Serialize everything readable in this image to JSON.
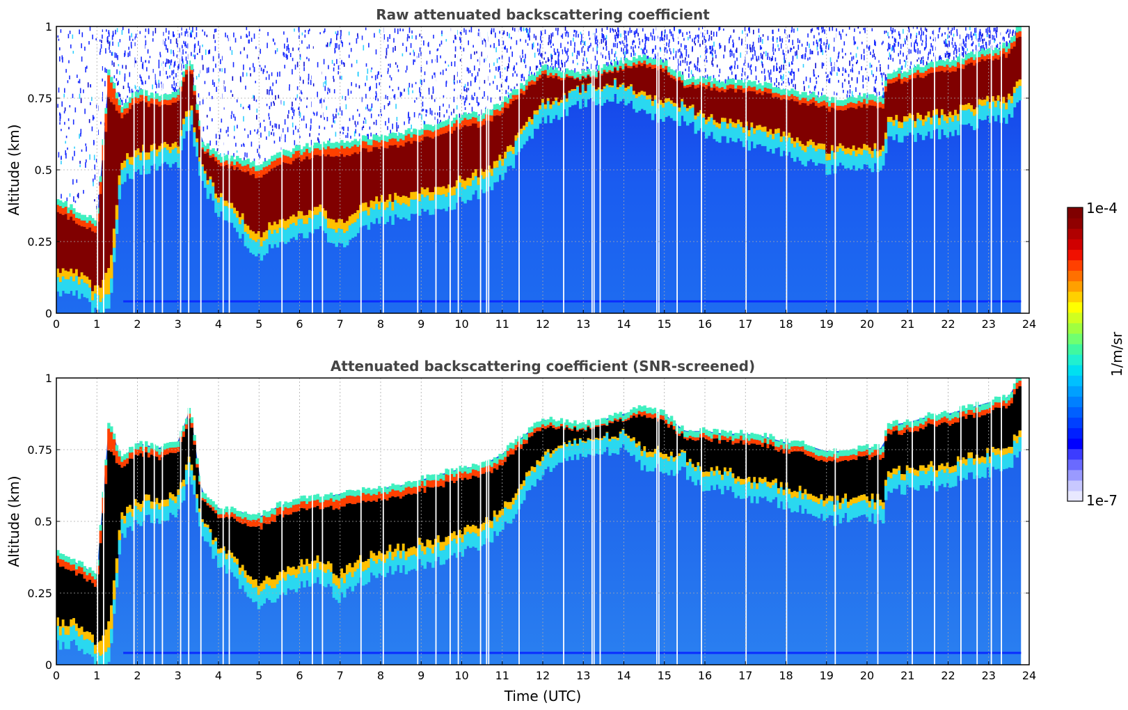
{
  "chart_data": [
    {
      "type": "heatmap",
      "title": "Raw attenuated backscattering coefficient",
      "xlabel": "",
      "ylabel": "Altitude (km)",
      "xlim": [
        0,
        24
      ],
      "ylim": [
        0,
        1
      ],
      "xticks": [
        "0",
        "1",
        "2",
        "3",
        "4",
        "5",
        "6",
        "7",
        "8",
        "9",
        "10",
        "11",
        "12",
        "13",
        "14",
        "15",
        "16",
        "17",
        "18",
        "19",
        "20",
        "21",
        "22",
        "23",
        "24"
      ],
      "yticks": [
        "0",
        "0.25",
        "0.5",
        "0.75",
        "1"
      ],
      "grid": true,
      "cloud_layer": {
        "time_utc": [
          0,
          0.5,
          1.0,
          1.3,
          1.6,
          2.0,
          2.5,
          3.0,
          3.3,
          3.6,
          4.0,
          4.5,
          5.0,
          5.5,
          6.0,
          6.5,
          7.0,
          7.5,
          8.0,
          8.5,
          9.0,
          9.5,
          10.0,
          10.5,
          11.0,
          12.0,
          13.0,
          14.0,
          14.5,
          15.0,
          15.5,
          16.0,
          16.5,
          17.0,
          17.5,
          18.0,
          18.5,
          19.0,
          19.5,
          20.0,
          20.4,
          20.5,
          21.0,
          21.5,
          22.0,
          22.5,
          23.0,
          23.5,
          23.8
        ],
        "base_km": [
          0.12,
          0.12,
          0.05,
          0.05,
          0.5,
          0.55,
          0.56,
          0.57,
          0.72,
          0.5,
          0.4,
          0.33,
          0.24,
          0.3,
          0.32,
          0.34,
          0.28,
          0.34,
          0.37,
          0.38,
          0.4,
          0.41,
          0.44,
          0.47,
          0.52,
          0.72,
          0.78,
          0.8,
          0.74,
          0.73,
          0.72,
          0.67,
          0.66,
          0.64,
          0.62,
          0.61,
          0.58,
          0.55,
          0.56,
          0.56,
          0.56,
          0.66,
          0.66,
          0.67,
          0.68,
          0.7,
          0.72,
          0.73,
          0.8
        ],
        "top_km": [
          0.38,
          0.34,
          0.3,
          0.84,
          0.7,
          0.76,
          0.74,
          0.76,
          0.88,
          0.58,
          0.53,
          0.52,
          0.5,
          0.54,
          0.56,
          0.57,
          0.58,
          0.59,
          0.6,
          0.61,
          0.63,
          0.65,
          0.67,
          0.68,
          0.72,
          0.84,
          0.82,
          0.86,
          0.88,
          0.86,
          0.8,
          0.8,
          0.79,
          0.79,
          0.78,
          0.76,
          0.75,
          0.73,
          0.73,
          0.74,
          0.74,
          0.82,
          0.83,
          0.85,
          0.86,
          0.88,
          0.9,
          0.92,
          1.0
        ]
      },
      "surface_band_km": 0.04,
      "noise_above_cloud": true
    },
    {
      "type": "heatmap",
      "title": "Attenuated backscattering coefficient (SNR-screened)",
      "xlabel": "Time (UTC)",
      "ylabel": "Altitude (km)",
      "xlim": [
        0,
        24
      ],
      "ylim": [
        0,
        1
      ],
      "xticks": [
        "0",
        "1",
        "2",
        "3",
        "4",
        "5",
        "6",
        "7",
        "8",
        "9",
        "10",
        "11",
        "12",
        "13",
        "14",
        "15",
        "16",
        "17",
        "18",
        "19",
        "20",
        "21",
        "22",
        "23",
        "24"
      ],
      "yticks": [
        "0",
        "0.25",
        "0.5",
        "0.75",
        "1"
      ],
      "grid": true,
      "saturated_color": "#000000",
      "cloud_layer": "same as panel 1",
      "noise_above_cloud": false
    }
  ],
  "colorbar": {
    "label": "1/m/sr",
    "max_label": "1e-4",
    "min_label": "1e-7",
    "colors": [
      "#e8e8ff",
      "#c8c8ff",
      "#9a9aff",
      "#6a6aff",
      "#3c3cff",
      "#0000ff",
      "#0020ff",
      "#0040ff",
      "#0060ff",
      "#0080ff",
      "#00a0ff",
      "#00c0ff",
      "#00e0f0",
      "#20f0d0",
      "#40f8a0",
      "#70ff70",
      "#a0ff40",
      "#d0ff20",
      "#ffff00",
      "#ffd000",
      "#ffa000",
      "#ff7000",
      "#ff4000",
      "#f01000",
      "#d00000",
      "#b00000",
      "#900000",
      "#800000"
    ]
  }
}
